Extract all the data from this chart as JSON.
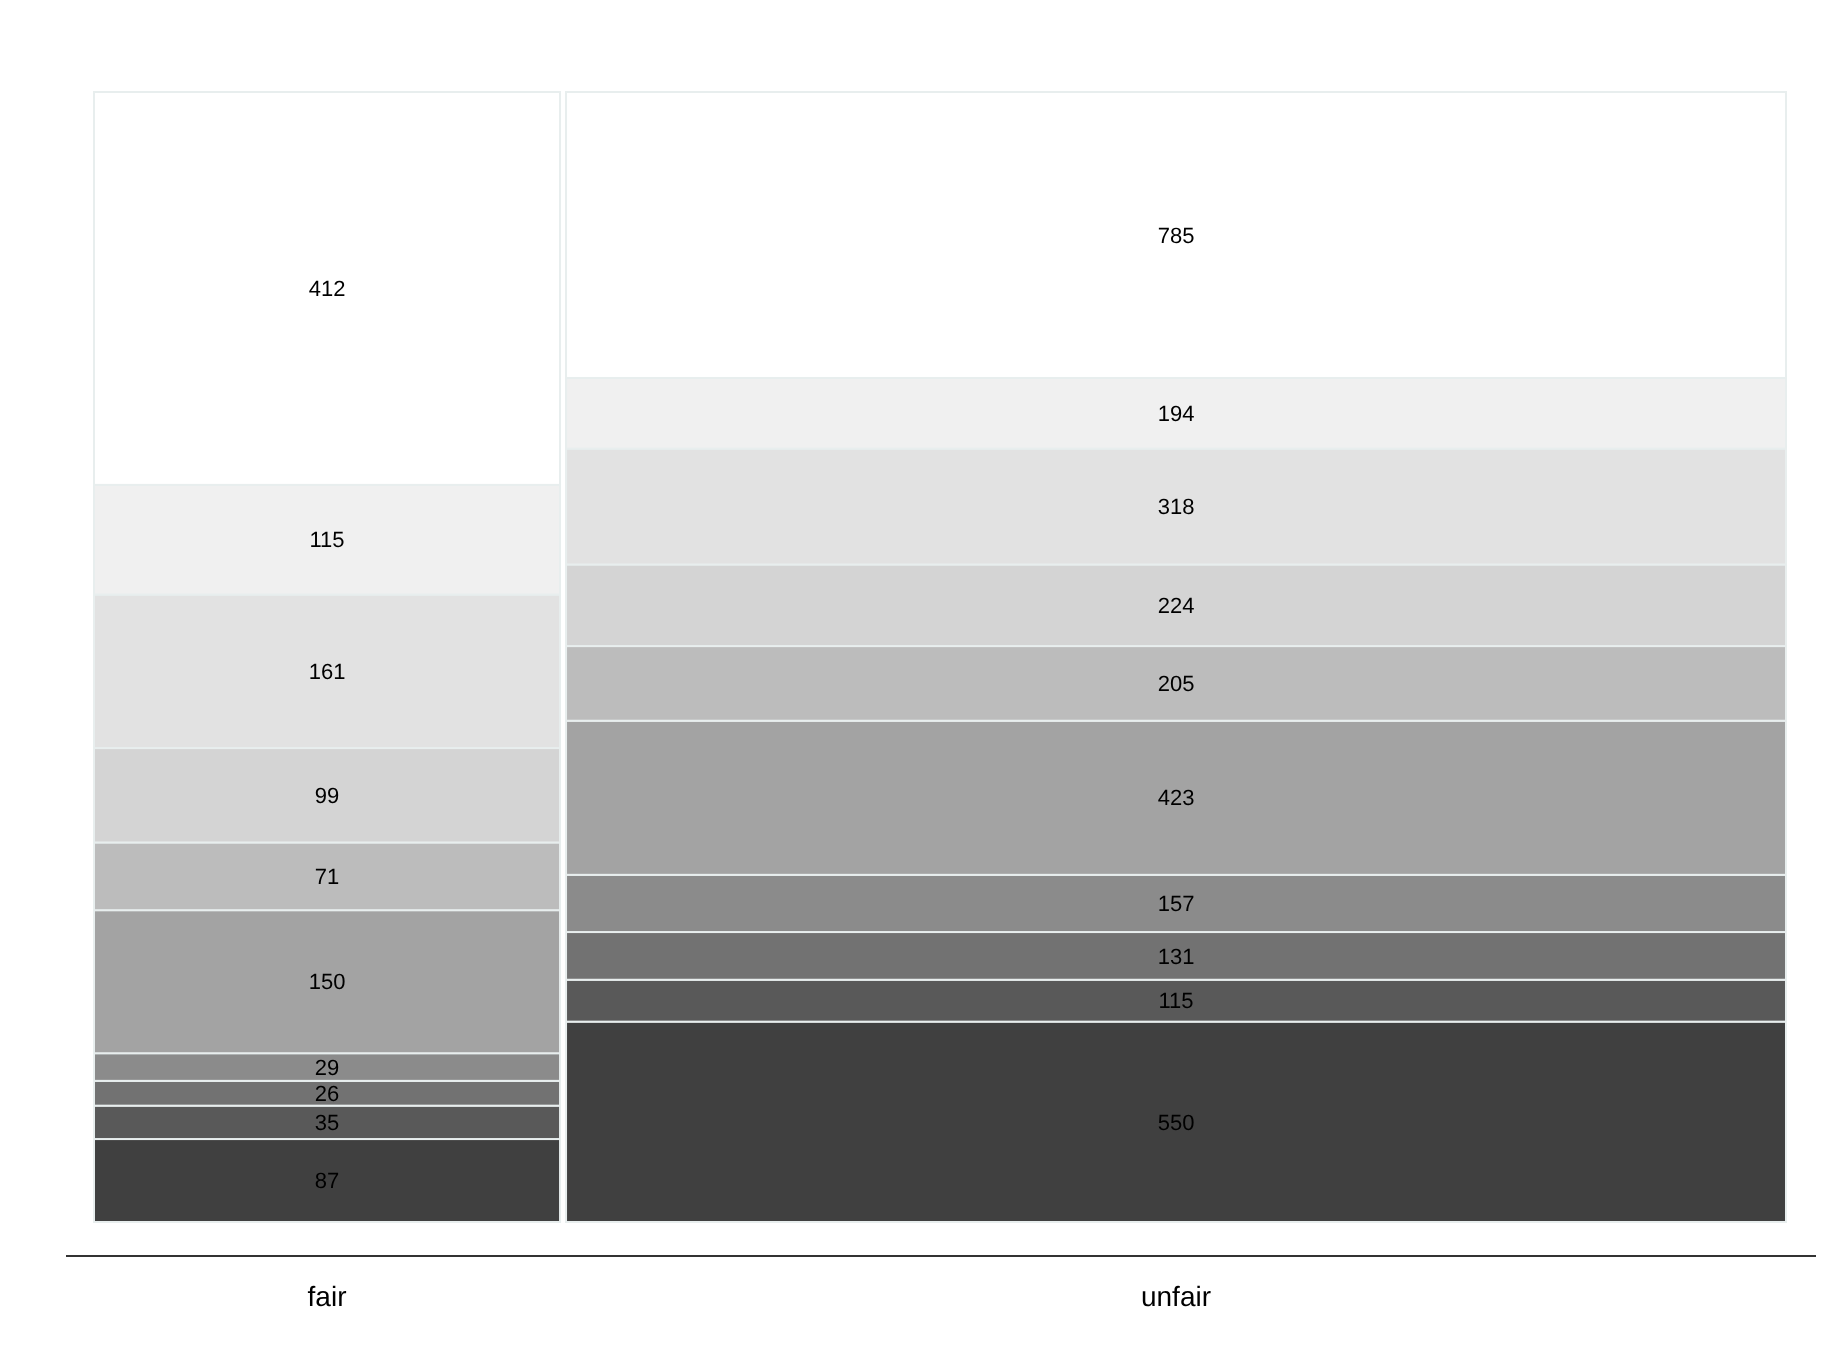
{
  "chart_data": {
    "type": "other",
    "categories": [
      "fair",
      "unfair"
    ],
    "series": [
      {
        "color": "#404040",
        "values": [
          87,
          550
        ]
      },
      {
        "color": "#595959",
        "values": [
          35,
          115
        ]
      },
      {
        "color": "#727272",
        "values": [
          26,
          131
        ]
      },
      {
        "color": "#8b8b8b",
        "values": [
          29,
          157
        ]
      },
      {
        "color": "#a3a3a3",
        "values": [
          150,
          423
        ]
      },
      {
        "color": "#bcbcbc",
        "values": [
          71,
          205
        ]
      },
      {
        "color": "#d4d4d4",
        "values": [
          99,
          224
        ]
      },
      {
        "color": "#e2e2e2",
        "values": [
          161,
          318
        ]
      },
      {
        "color": "#f0f0f0",
        "values": [
          115,
          194
        ]
      },
      {
        "color": "#ffffff",
        "values": [
          412,
          785
        ]
      }
    ],
    "data_labels": true
  }
}
